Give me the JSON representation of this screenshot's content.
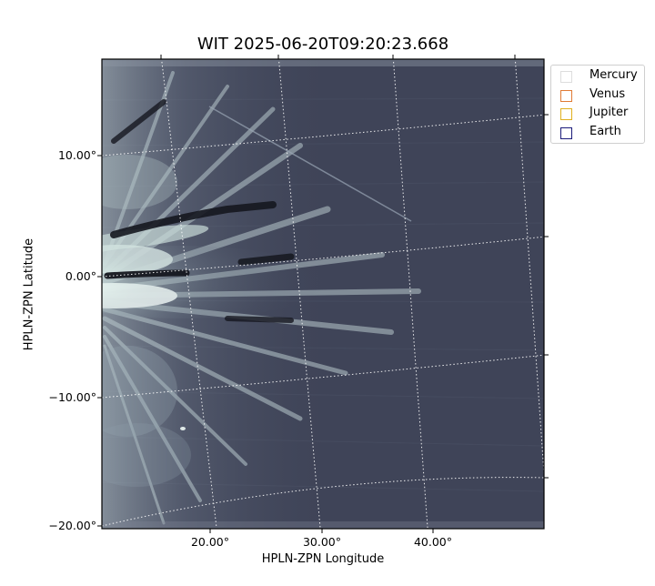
{
  "title": "WIT 2025-06-20T09:20:23.668",
  "xlabel": "HPLN-ZPN Longitude",
  "ylabel": "HPLN-ZPN Latitude",
  "x_ticks": [
    "20.00°",
    "30.00°",
    "40.00°"
  ],
  "y_ticks": [
    "10.00°",
    "0.00°",
    "−10.00°",
    "−20.00°"
  ],
  "legend": [
    {
      "label": "Mercury",
      "color": "#dddddd"
    },
    {
      "label": "Venus",
      "color": "#e07b35"
    },
    {
      "label": "Jupiter",
      "color": "#e0b020"
    },
    {
      "label": "Earth",
      "color": "#1a1a7a"
    }
  ],
  "colors": {
    "background": "#3e4356",
    "streamer_bright": "#e4f2ef",
    "grid": "#ffffff"
  },
  "image_description_terms": {
    "colormap": "bone"
  }
}
